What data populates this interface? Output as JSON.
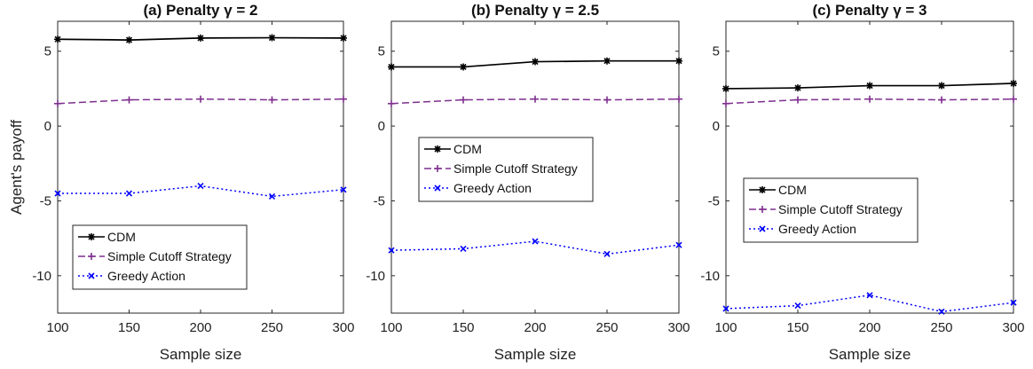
{
  "chart_data": [
    {
      "type": "line",
      "title": "(a) Penalty γ = 2",
      "xlabel": "Sample size",
      "ylabel": "Agent's payoff",
      "x": [
        100,
        150,
        200,
        250,
        300
      ],
      "xticks": [
        100,
        150,
        200,
        250,
        300
      ],
      "yticks": [
        5,
        0,
        -5,
        -10
      ],
      "xlim": [
        100,
        300
      ],
      "ylim": [
        -12.5,
        7
      ],
      "legend_position": "bottom-left",
      "series": [
        {
          "name": "CDM",
          "color": "#000000",
          "marker": "asterisk",
          "style": "solid",
          "values": [
            5.8,
            5.75,
            5.88,
            5.9,
            5.88
          ]
        },
        {
          "name": "Simple Cutoff Strategy",
          "color": "#7e2f8e",
          "marker": "plus",
          "style": "dashed",
          "values": [
            1.5,
            1.75,
            1.8,
            1.75,
            1.8
          ]
        },
        {
          "name": "Greedy Action",
          "color": "#0000ff",
          "marker": "cross",
          "style": "dotted",
          "values": [
            -4.5,
            -4.5,
            -4.0,
            -4.7,
            -4.25
          ]
        }
      ]
    },
    {
      "type": "line",
      "title": "(b) Penalty γ = 2.5",
      "xlabel": "Sample size",
      "ylabel": "",
      "x": [
        100,
        150,
        200,
        250,
        300
      ],
      "xticks": [
        100,
        150,
        200,
        250,
        300
      ],
      "yticks": [
        5,
        0,
        -5,
        -10
      ],
      "xlim": [
        100,
        300
      ],
      "ylim": [
        -12.5,
        7
      ],
      "legend_position": "center-left",
      "series": [
        {
          "name": "CDM",
          "color": "#000000",
          "marker": "asterisk",
          "style": "solid",
          "values": [
            3.95,
            3.95,
            4.3,
            4.35,
            4.35
          ]
        },
        {
          "name": "Simple Cutoff Strategy",
          "color": "#7e2f8e",
          "marker": "plus",
          "style": "dashed",
          "values": [
            1.5,
            1.75,
            1.8,
            1.75,
            1.8
          ]
        },
        {
          "name": "Greedy Action",
          "color": "#0000ff",
          "marker": "cross",
          "style": "dotted",
          "values": [
            -8.3,
            -8.2,
            -7.7,
            -8.55,
            -7.95
          ]
        }
      ]
    },
    {
      "type": "line",
      "title": "(c) Penalty γ = 3",
      "xlabel": "Sample size",
      "ylabel": "",
      "x": [
        100,
        150,
        200,
        250,
        300
      ],
      "xticks": [
        100,
        150,
        200,
        250,
        300
      ],
      "yticks": [
        5,
        0,
        -5,
        -10
      ],
      "xlim": [
        100,
        300
      ],
      "ylim": [
        -12.5,
        7
      ],
      "legend_position": "center-left",
      "series": [
        {
          "name": "CDM",
          "color": "#000000",
          "marker": "asterisk",
          "style": "solid",
          "values": [
            2.5,
            2.55,
            2.7,
            2.7,
            2.85
          ]
        },
        {
          "name": "Simple Cutoff Strategy",
          "color": "#7e2f8e",
          "marker": "plus",
          "style": "dashed",
          "values": [
            1.5,
            1.75,
            1.8,
            1.75,
            1.8
          ]
        },
        {
          "name": "Greedy Action",
          "color": "#0000ff",
          "marker": "cross",
          "style": "dotted",
          "values": [
            -12.2,
            -12.0,
            -11.3,
            -12.4,
            -11.8
          ]
        }
      ]
    }
  ]
}
